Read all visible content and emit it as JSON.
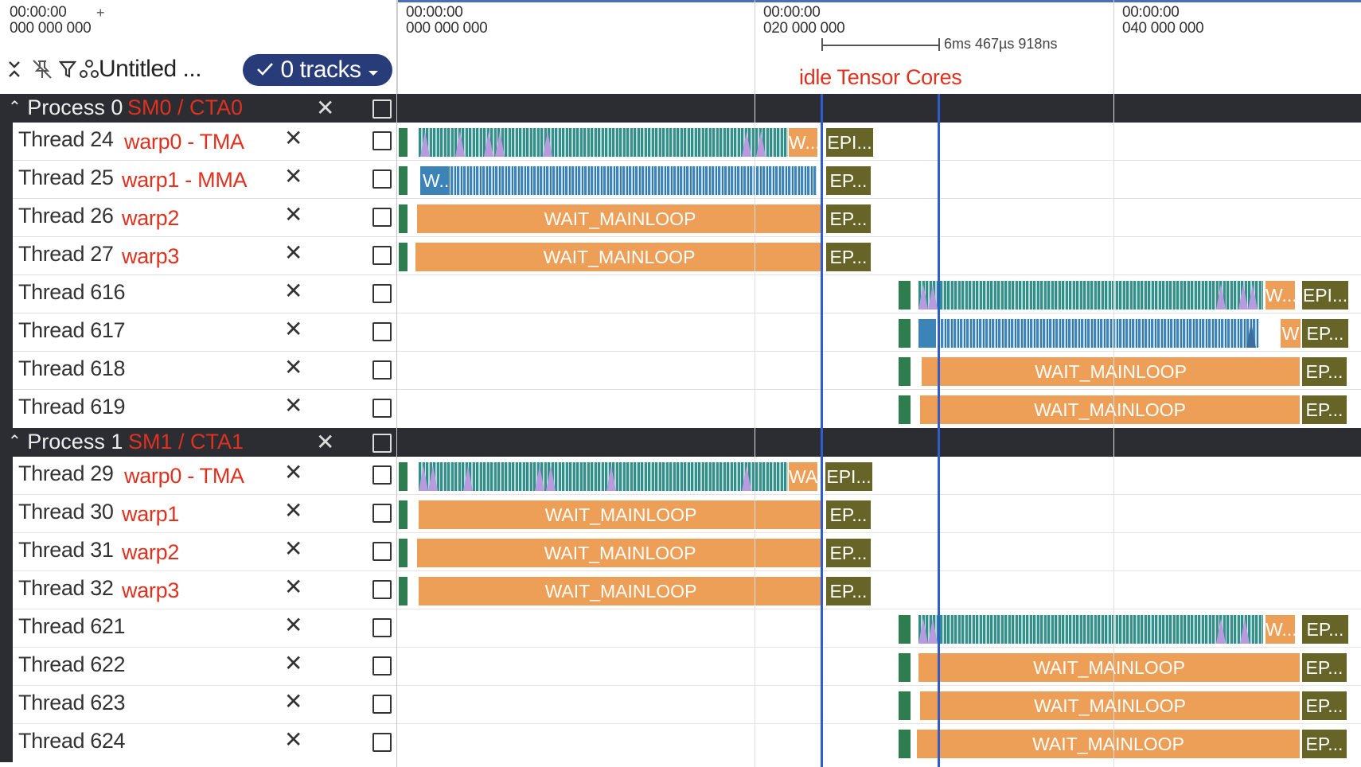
{
  "header": {
    "left_timestamp": {
      "line1": "00:00:00",
      "line2": "000 000 000"
    },
    "plus": "+",
    "workspace_name": "Untitled ...",
    "tracks_button": "0 tracks",
    "ruler_ticks": [
      {
        "line1": "00:00:00",
        "line2": "000 000 000"
      },
      {
        "line1": "00:00:00",
        "line2": "020 000 000"
      },
      {
        "line1": "00:00:00",
        "line2": "040 000 000"
      }
    ],
    "measure_label": "6ms 467µs 918ns",
    "annotation": "idle Tensor Cores"
  },
  "icons": [
    "collapse-icon",
    "unpin-icon",
    "filter-icon",
    "workspace-icon",
    "check-icon",
    "caret-down-icon",
    "close-icon",
    "checkbox-icon",
    "chevron-up-icon"
  ],
  "colors": {
    "cursor": "#2f5ccf",
    "wait_mainloop": "#ee9f57",
    "epilogue": "#676428",
    "start": "#2e7d4f",
    "tma": "#4fa6a0",
    "mma": "#3c83b8",
    "annotation": "#e0311f",
    "tracks_button": "#283c7a"
  },
  "processes": [
    {
      "label": "Process 0",
      "annotation": "SM0 / CTA0",
      "threads": [
        {
          "name": "Thread 24",
          "warp": "warp0 - TMA",
          "labels": [
            "W...",
            "EPI..."
          ]
        },
        {
          "name": "Thread 25",
          "warp": "warp1 - MMA",
          "labels": [
            "W...",
            "EP..."
          ]
        },
        {
          "name": "Thread 26",
          "warp": "warp2",
          "labels": [
            "WAIT_MAINLOOP",
            "EP..."
          ]
        },
        {
          "name": "Thread 27",
          "warp": "warp3",
          "labels": [
            "WAIT_MAINLOOP",
            "EP..."
          ]
        },
        {
          "name": "Thread 616",
          "warp": "",
          "labels": [
            "W...",
            "EPI..."
          ]
        },
        {
          "name": "Thread 617",
          "warp": "",
          "labels": [
            "W",
            "EP..."
          ]
        },
        {
          "name": "Thread 618",
          "warp": "",
          "labels": [
            "WAIT_MAINLOOP",
            "EP..."
          ]
        },
        {
          "name": "Thread 619",
          "warp": "",
          "labels": [
            "WAIT_MAINLOOP",
            "EP..."
          ]
        }
      ]
    },
    {
      "label": "Process 1",
      "annotation": "SM1 / CTA1",
      "threads": [
        {
          "name": "Thread 29",
          "warp": "warp0 - TMA",
          "labels": [
            "WA...",
            "EPI..."
          ]
        },
        {
          "name": "Thread 30",
          "warp": "warp1",
          "labels": [
            "WAIT_MAINLOOP",
            "EP..."
          ]
        },
        {
          "name": "Thread 31",
          "warp": "warp2",
          "labels": [
            "WAIT_MAINLOOP",
            "EP..."
          ]
        },
        {
          "name": "Thread 32",
          "warp": "warp3",
          "labels": [
            "WAIT_MAINLOOP",
            "EP..."
          ]
        },
        {
          "name": "Thread 621",
          "warp": "",
          "labels": [
            "W...",
            "EP..."
          ]
        },
        {
          "name": "Thread 622",
          "warp": "",
          "labels": [
            "WAIT_MAINLOOP",
            "EP..."
          ]
        },
        {
          "name": "Thread 623",
          "warp": "",
          "labels": [
            "WAIT_MAINLOOP",
            "EP..."
          ]
        },
        {
          "name": "Thread 624",
          "warp": "",
          "labels": [
            "WAIT_MAINLOOP",
            "EP..."
          ]
        }
      ]
    }
  ]
}
